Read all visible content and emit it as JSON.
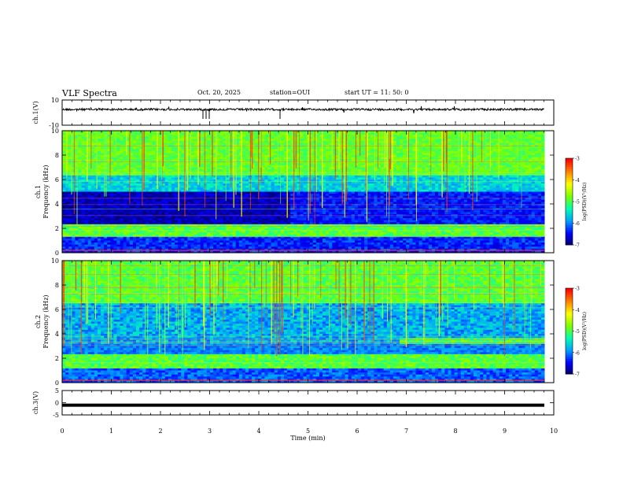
{
  "header": {
    "title": "VLF Spectra",
    "date": "Oct. 20, 2025",
    "station": "station=OUI",
    "start": "start  UT  =   11: 50: 0"
  },
  "chart_data": [
    {
      "type": "line",
      "panel": "ch1-waveform",
      "ylabel": "ch.1(V)",
      "ylim": [
        -10,
        10
      ],
      "yticks": [
        "10",
        "-10"
      ],
      "xlim": [
        0,
        10
      ],
      "series": [
        {
          "baseline": 0,
          "noise_amplitude": 0.8
        }
      ]
    },
    {
      "type": "heatmap",
      "panel": "ch1-spectrogram",
      "ylabel": "ch.1  Frequency (kHz)",
      "ylim": [
        0,
        10
      ],
      "yticks": [
        "0",
        "2",
        "4",
        "6",
        "8",
        "10"
      ],
      "xlim": [
        0,
        9.8
      ],
      "colorbar": {
        "label": "log(PSD)(V²/Hz)",
        "ticks": [
          "-3",
          "-4",
          "-5",
          "-6",
          "-7"
        ],
        "range": [
          -7,
          -3
        ]
      }
    },
    {
      "type": "heatmap",
      "panel": "ch2-spectrogram",
      "ylabel": "ch.2  Frequency (kHz)",
      "ylim": [
        0,
        10
      ],
      "yticks": [
        "0",
        "2",
        "4",
        "6",
        "8",
        "10"
      ],
      "xlim": [
        0,
        9.8
      ],
      "colorbar": {
        "label": "log(PSD)(V²/Hz)",
        "ticks": [
          "-3",
          "-4",
          "-5",
          "-6",
          "-7"
        ],
        "range": [
          -7,
          -3
        ]
      }
    },
    {
      "type": "line",
      "panel": "ch3-waveform",
      "ylabel": "ch.3(V)",
      "ylim": [
        -5,
        5
      ],
      "yticks": [
        "5",
        "0",
        "-5"
      ],
      "xlim": [
        0,
        9.8
      ],
      "series": [
        {
          "baseline": -1,
          "noise_amplitude": 0
        }
      ]
    }
  ],
  "xaxis": {
    "label": "Time  (min)",
    "ticks": [
      "0",
      "1",
      "2",
      "3",
      "4",
      "5",
      "6",
      "7",
      "8",
      "9",
      "10"
    ],
    "range": [
      0,
      10
    ]
  },
  "colors": {
    "colormap": [
      "#000060",
      "#0000ff",
      "#00a0ff",
      "#00ffb0",
      "#7cff00",
      "#ffff00",
      "#ff8000",
      "#ff0000"
    ]
  }
}
